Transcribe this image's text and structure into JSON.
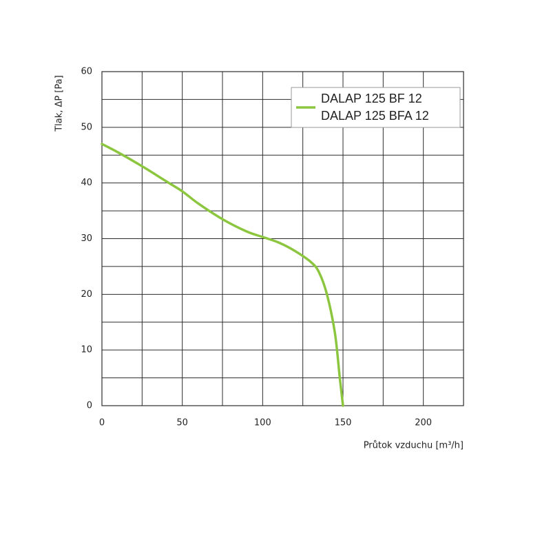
{
  "chart_data": {
    "type": "line",
    "y_label": "Tlak, ΔP [Pa]",
    "x_label": "Průtok vzduchu [m³/h]",
    "legend": [
      "DALAP 125 BF 12",
      "DALAP 125 BFA 12"
    ],
    "legend_position": "upper right",
    "grid": true,
    "minor_grid": true,
    "xlim": [
      0,
      225
    ],
    "ylim": [
      0,
      60
    ],
    "xticks": [
      0,
      50,
      100,
      150,
      200
    ],
    "yticks": [
      0,
      10,
      20,
      30,
      40,
      50,
      60
    ],
    "series": [
      {
        "color": "#8cc63f",
        "x": [
          0,
          10,
          25,
          40,
          50,
          60,
          75,
          90,
          100,
          110,
          120,
          130,
          135,
          140,
          145,
          148,
          150
        ],
        "values": [
          47,
          45.5,
          43,
          40.3,
          38.5,
          36.3,
          33.5,
          31.3,
          30.3,
          29.3,
          27.8,
          25.8,
          24,
          20,
          13,
          5,
          0
        ]
      }
    ]
  }
}
